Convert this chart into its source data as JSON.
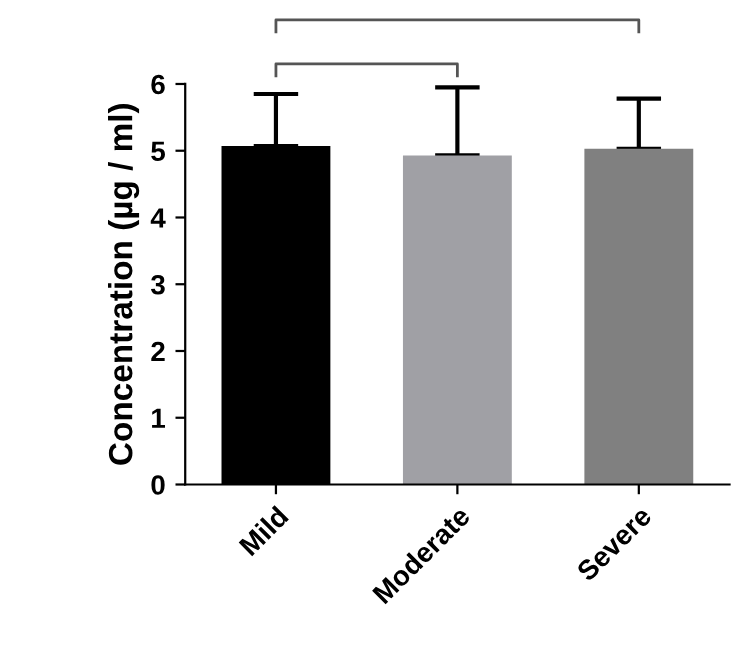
{
  "chart_data": {
    "type": "bar",
    "categories": [
      "Mild",
      "Moderate",
      "Severe"
    ],
    "values": [
      5.07,
      4.93,
      5.03
    ],
    "colors": [
      "#000000",
      "#a0a0a5",
      "#808080"
    ],
    "errors": [
      [
        5.07,
        5.85
      ],
      [
        4.93,
        5.95
      ],
      [
        5.03,
        5.78
      ]
    ],
    "ylabel": "Concentration (µg / ml)",
    "ylim": [
      0,
      6
    ],
    "yticks": [
      0,
      1,
      2,
      3,
      4,
      5,
      6
    ],
    "grid": false,
    "legend": false
  }
}
